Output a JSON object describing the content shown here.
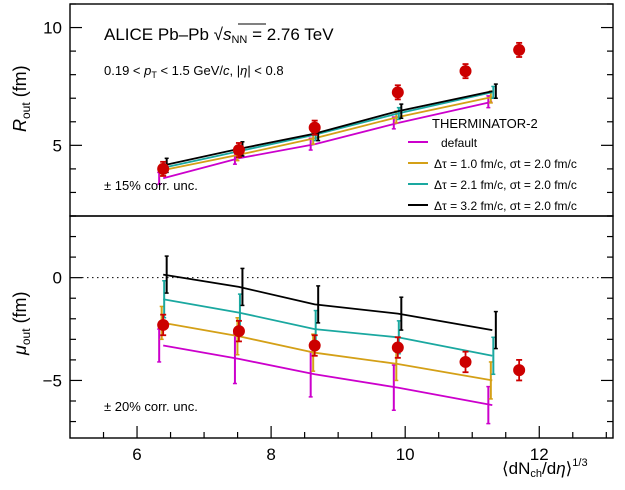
{
  "chart_data": [
    {
      "type": "line",
      "panel": "top",
      "title": "ALICE Pb–Pb √s_NN = 2.76 TeV",
      "title_parts": {
        "prefix": "ALICE Pb–Pb ",
        "sqrt": "√",
        "var": "s",
        "sub": "NN",
        "suffix": " = 2.76 TeV"
      },
      "subtitle": "0.19 < p_T < 1.5 GeV/c, |η| < 0.8",
      "subtitle_parts": {
        "a": "0.19 < ",
        "p": "p",
        "t": "T",
        "b": " < 1.5 GeV/",
        "c": "c",
        "d": ", |",
        "eta": "η",
        "e": "| < 0.8"
      },
      "ylabel": "R_out (fm)",
      "ylabel_parts": {
        "main": "R",
        "sub": "out",
        "unit": " (fm)"
      },
      "ylim": [
        2.0,
        11.0
      ],
      "yticks": [
        5,
        10
      ],
      "corr_unc_text": "± 15% corr. unc.",
      "legend": {
        "title": "THERMINATOR-2",
        "placement": "right",
        "entries": [
          {
            "label": "default",
            "color": "#cc00cc"
          },
          {
            "label": "Δτ = 1.0 fm/c, σt = 2.0 fm/c",
            "color": "#d4a017"
          },
          {
            "label": "Δτ = 2.1 fm/c, σt = 2.0 fm/c",
            "color": "#1aa8a0"
          },
          {
            "label": "Δτ = 3.2 fm/c, σt = 2.0 fm/c",
            "color": "#000000"
          }
        ]
      },
      "data_points": {
        "color": "#cc0000",
        "x": [
          6.39,
          7.52,
          8.65,
          9.89,
          10.9,
          11.7
        ],
        "y": [
          4.0,
          4.8,
          5.75,
          7.25,
          8.15,
          9.05
        ],
        "err": [
          0.3,
          0.3,
          0.3,
          0.3,
          0.3,
          0.3
        ]
      },
      "series": [
        {
          "color": "#cc00cc",
          "x": [
            6.39,
            7.52,
            8.65,
            9.89,
            11.3
          ],
          "y": [
            3.6,
            4.45,
            5.05,
            5.95,
            6.85
          ],
          "err": [
            0.25,
            0.25,
            0.25,
            0.25,
            0.25
          ]
        },
        {
          "color": "#d4a017",
          "x": [
            6.39,
            7.52,
            8.65,
            9.89,
            11.3
          ],
          "y": [
            3.95,
            4.6,
            5.3,
            6.2,
            7.05
          ],
          "err": [
            0.25,
            0.25,
            0.25,
            0.25,
            0.25
          ]
        },
        {
          "color": "#1aa8a0",
          "x": [
            6.39,
            7.52,
            8.65,
            9.89,
            11.3
          ],
          "y": [
            4.05,
            4.75,
            5.45,
            6.35,
            7.25
          ],
          "err": [
            0.25,
            0.25,
            0.25,
            0.25,
            0.25
          ]
        },
        {
          "color": "#000000",
          "x": [
            6.39,
            7.52,
            8.65,
            9.89,
            11.3
          ],
          "y": [
            4.15,
            4.85,
            5.5,
            6.45,
            7.3
          ],
          "err": [
            0.3,
            0.3,
            0.3,
            0.3,
            0.3
          ]
        }
      ]
    },
    {
      "type": "line",
      "panel": "bottom",
      "ylabel": "μ_out (fm)",
      "ylabel_parts": {
        "main": "μ",
        "sub": "out",
        "unit": " (fm)"
      },
      "ylim": [
        -7.8,
        3.0
      ],
      "yticks": [
        -5,
        0
      ],
      "xlabel": "⟨dN_ch/dη⟩^1/3",
      "xlabel_parts": {
        "open": "⟨",
        "dn": "dN",
        "sub": "ch",
        "slash": "/d",
        "eta": "η",
        "close": "⟩",
        "sup": "1/3"
      },
      "xlim": [
        5.0,
        13.1
      ],
      "xticks": [
        6,
        8,
        10,
        12
      ],
      "corr_unc_text": "± 20% corr. unc.",
      "reference_line_y": 0,
      "data_points": {
        "color": "#cc0000",
        "x": [
          6.39,
          7.52,
          8.65,
          9.89,
          10.9,
          11.7
        ],
        "y": [
          -2.3,
          -2.6,
          -3.3,
          -3.4,
          -4.1,
          -4.5
        ],
        "err": [
          0.5,
          0.5,
          0.5,
          0.5,
          0.5,
          0.5
        ]
      },
      "series": [
        {
          "color": "#cc00cc",
          "x": [
            6.39,
            7.52,
            8.65,
            9.89,
            11.3
          ],
          "y": [
            -3.3,
            -3.95,
            -4.7,
            -5.35,
            -6.2
          ],
          "err": [
            0.8,
            1.2,
            1.1,
            1.1,
            0.9
          ]
        },
        {
          "color": "#d4a017",
          "x": [
            6.39,
            7.52,
            8.65,
            9.89,
            11.3
          ],
          "y": [
            -2.2,
            -2.85,
            -3.65,
            -4.2,
            -5.0
          ],
          "err": [
            0.8,
            0.9,
            0.9,
            0.8,
            0.9
          ]
        },
        {
          "color": "#1aa8a0",
          "x": [
            6.39,
            7.52,
            8.65,
            9.89,
            11.3
          ],
          "y": [
            -1.05,
            -1.7,
            -2.5,
            -2.9,
            -3.8
          ],
          "err": [
            0.9,
            0.9,
            0.9,
            0.8,
            0.9
          ]
        },
        {
          "color": "#000000",
          "x": [
            6.39,
            7.52,
            8.65,
            9.89,
            11.3
          ],
          "y": [
            0.15,
            -0.45,
            -1.3,
            -1.75,
            -2.55
          ],
          "err": [
            0.9,
            0.9,
            0.9,
            0.8,
            0.9
          ]
        }
      ]
    }
  ]
}
